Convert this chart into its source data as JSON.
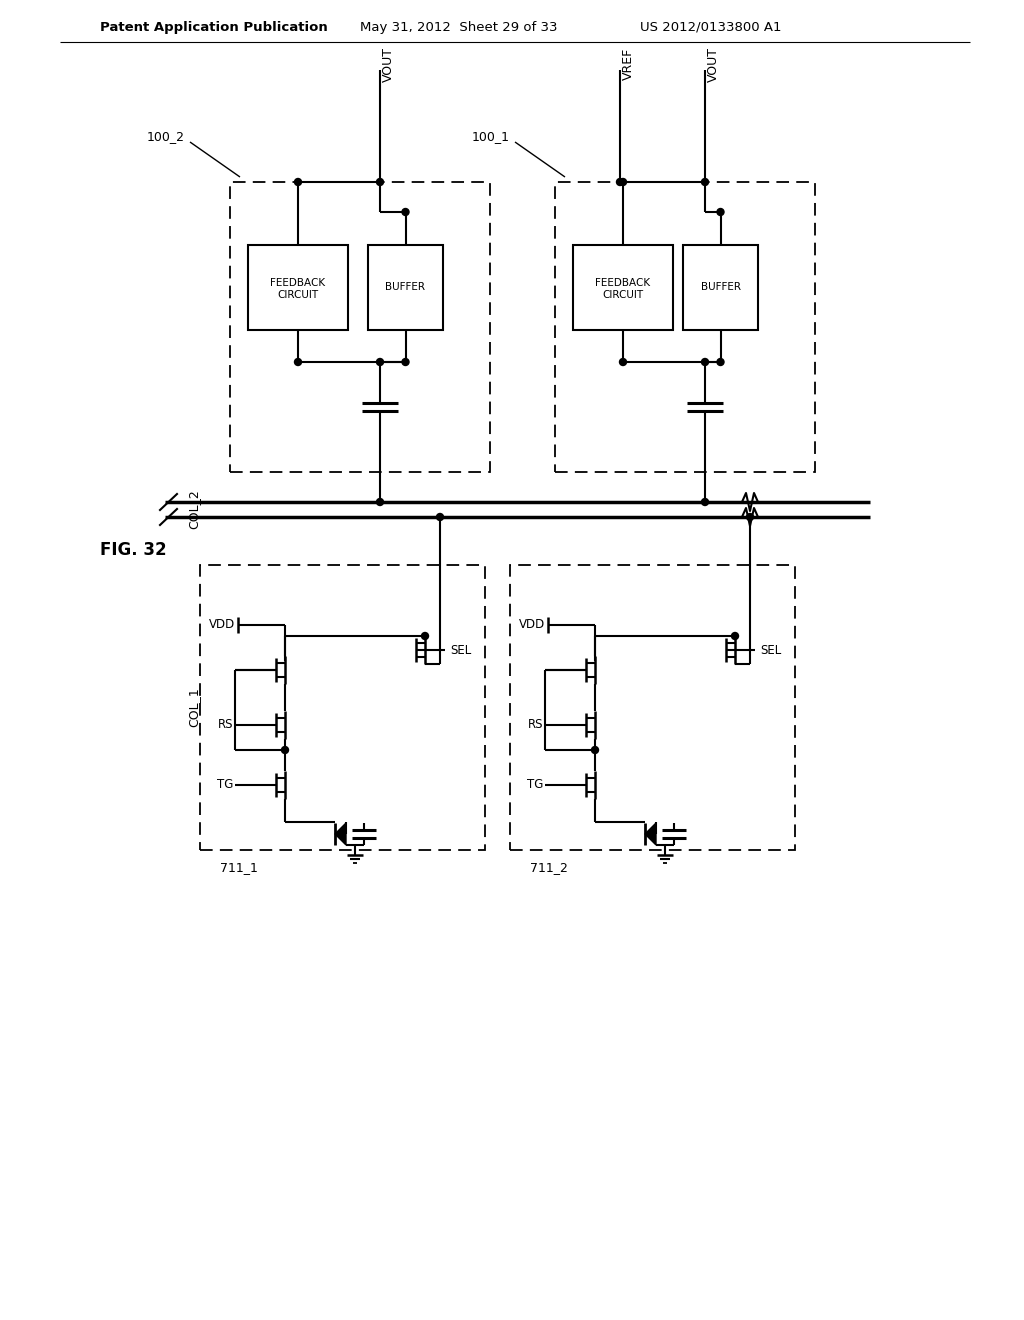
{
  "header_left": "Patent Application Publication",
  "header_mid": "May 31, 2012  Sheet 29 of 33",
  "header_right": "US 2012/0133800 A1",
  "fig_label": "FIG. 32",
  "bg_color": "#ffffff"
}
